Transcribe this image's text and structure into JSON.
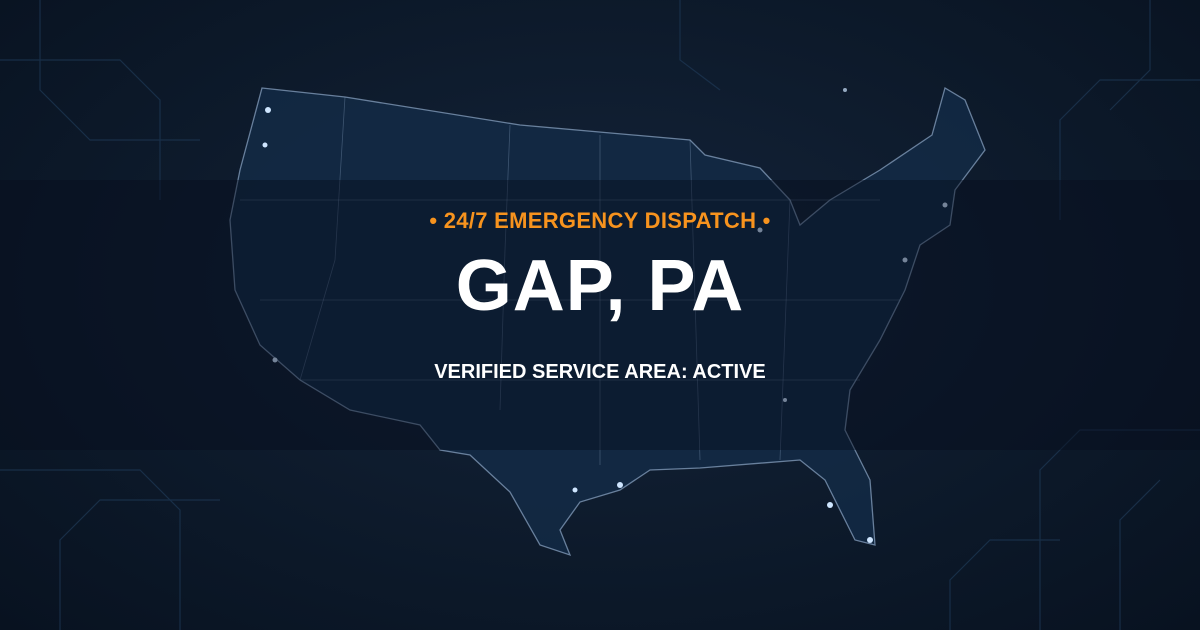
{
  "header": {
    "tagline": "• 24/7 EMERGENCY DISPATCH •",
    "location": "GAP, PA",
    "status": "VERIFIED SERVICE AREA: ACTIVE"
  },
  "colors": {
    "accent": "#f7931e",
    "background": "#0d1a2b",
    "map_lines": "#8fa8c8",
    "text": "#ffffff"
  },
  "background_image": "us-map-circuit-board"
}
